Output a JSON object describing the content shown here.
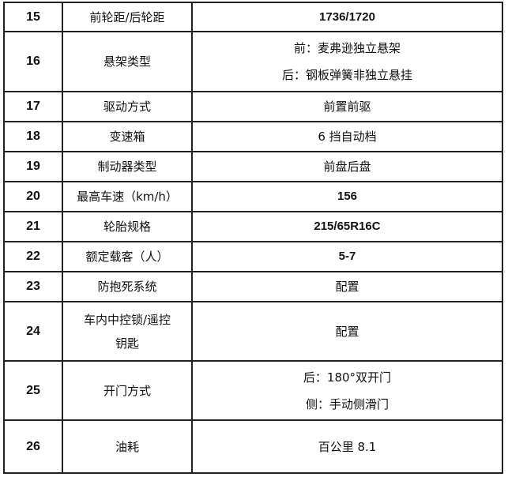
{
  "rows": [
    {
      "no": "15",
      "name": [
        "前轮距/后轮距"
      ],
      "value": [
        "1736/1720"
      ],
      "bold": true,
      "h": 37
    },
    {
      "no": "16",
      "name": [
        "悬架类型"
      ],
      "value": [
        "前：麦弗逊独立悬架",
        "后：钢板弹簧非独立悬挂"
      ],
      "bold": false,
      "h": 76
    },
    {
      "no": "17",
      "name": [
        "驱动方式"
      ],
      "value": [
        "前置前驱"
      ],
      "bold": false,
      "h": 38
    },
    {
      "no": "18",
      "name": [
        "变速箱"
      ],
      "value": [
        "6 挡自动档"
      ],
      "bold": false,
      "h": 38
    },
    {
      "no": "19",
      "name": [
        "制动器类型"
      ],
      "value": [
        "前盘后盘"
      ],
      "bold": false,
      "h": 38
    },
    {
      "no": "20",
      "name": [
        "最高车速（km/h）"
      ],
      "value": [
        "156"
      ],
      "bold": true,
      "h": 38
    },
    {
      "no": "21",
      "name": [
        "轮胎规格"
      ],
      "value": [
        "215/65R16C"
      ],
      "bold": true,
      "h": 38
    },
    {
      "no": "22",
      "name": [
        "额定载客（人）"
      ],
      "value": [
        "5-7"
      ],
      "bold": true,
      "h": 38
    },
    {
      "no": "23",
      "name": [
        "防抱死系统"
      ],
      "value": [
        "配置"
      ],
      "bold": false,
      "h": 38
    },
    {
      "no": "24",
      "name": [
        "车内中控锁/遥控",
        "钥匙"
      ],
      "value": [
        "配置"
      ],
      "bold": false,
      "h": 75
    },
    {
      "no": "25",
      "name": [
        "开门方式"
      ],
      "value": [
        "后：180°双开门",
        "侧：手动侧滑门"
      ],
      "bold": false,
      "h": 75
    },
    {
      "no": "26",
      "name": [
        "油耗"
      ],
      "value": [
        "百公里 8.1"
      ],
      "bold": false,
      "h": 67
    }
  ]
}
